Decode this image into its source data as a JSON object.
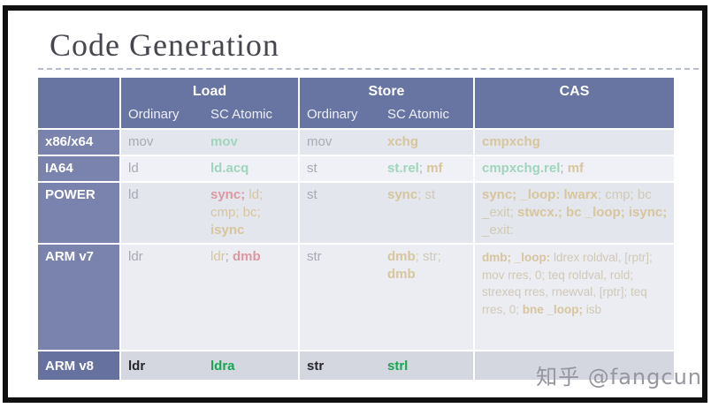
{
  "slide": {
    "title": "Code Generation",
    "watermark": "知乎 @fangcun"
  },
  "palette": {
    "gray": "#a7aab4",
    "tan": "#d7c69c",
    "dim": "#cfc9b6",
    "red": "#dc97a1",
    "green": "#9fd5bd",
    "black": "#26262b",
    "brightGreen": "#17a551"
  },
  "table": {
    "groups": [
      {
        "label": "Load",
        "sub": [
          "Ordinary",
          "SC Atomic"
        ]
      },
      {
        "label": "Store",
        "sub": [
          "Ordinary",
          "SC Atomic"
        ]
      },
      {
        "label": "CAS",
        "sub": []
      }
    ],
    "rows": [
      {
        "arch": "x86/x64",
        "load_ord": [
          {
            "t": "mov",
            "c": "gray"
          }
        ],
        "load_sc": [
          {
            "t": "mov",
            "c": "green",
            "b": 1
          }
        ],
        "store_ord": [
          {
            "t": "mov",
            "c": "gray"
          }
        ],
        "store_sc": [
          {
            "t": "xchg",
            "c": "tan",
            "b": 1
          }
        ],
        "cas": [
          {
            "t": "cmpxchg",
            "c": "tan",
            "b": 1
          }
        ]
      },
      {
        "arch": "IA64",
        "load_ord": [
          {
            "t": "ld",
            "c": "gray"
          }
        ],
        "load_sc": [
          {
            "t": "ld.acq",
            "c": "green",
            "b": 1
          }
        ],
        "store_ord": [
          {
            "t": "st",
            "c": "gray"
          }
        ],
        "store_sc": [
          {
            "t": "st.rel",
            "c": "green",
            "b": 1
          },
          {
            "t": "; ",
            "c": "gray"
          },
          {
            "t": "mf",
            "c": "tan",
            "b": 1
          }
        ],
        "cas": [
          {
            "t": "cmpxchg.rel",
            "c": "green",
            "b": 1
          },
          {
            "t": "; ",
            "c": "gray"
          },
          {
            "t": "mf",
            "c": "tan",
            "b": 1
          }
        ]
      },
      {
        "arch": "POWER",
        "load_ord": [
          {
            "t": "ld",
            "c": "gray"
          }
        ],
        "load_sc": [
          {
            "t": "sync; ",
            "c": "red",
            "b": 1
          },
          {
            "t": "ld; cmp; bc; ",
            "c": "tan"
          },
          {
            "t": "isync",
            "c": "tan",
            "b": 1
          }
        ],
        "store_ord": [
          {
            "t": "st",
            "c": "gray"
          }
        ],
        "store_sc": [
          {
            "t": "sync",
            "c": "tan",
            "b": 1
          },
          {
            "t": "; ",
            "c": "dim"
          },
          {
            "t": "st",
            "c": "dim"
          }
        ],
        "cas": [
          {
            "t": "sync; _loop: lwarx",
            "c": "tan",
            "b": 1
          },
          {
            "t": "; cmp; bc _exit; ",
            "c": "dim"
          },
          {
            "t": "stwcx.; bc _loop; isync;",
            "c": "tan",
            "b": 1
          },
          {
            "t": " _exit:",
            "c": "dim"
          }
        ]
      },
      {
        "arch": "ARM v7",
        "load_ord": [
          {
            "t": "ldr",
            "c": "gray"
          }
        ],
        "load_sc": [
          {
            "t": "ldr",
            "c": "tan"
          },
          {
            "t": "; ",
            "c": "gray"
          },
          {
            "t": "dmb",
            "c": "red",
            "b": 1
          }
        ],
        "store_ord": [
          {
            "t": "str",
            "c": "gray"
          }
        ],
        "store_sc": [
          {
            "t": "dmb",
            "c": "tan",
            "b": 1
          },
          {
            "t": "; str; ",
            "c": "dim"
          },
          {
            "t": "dmb",
            "c": "tan",
            "b": 1
          }
        ],
        "cas": [
          {
            "t": "dmb; _loop:",
            "c": "tan",
            "b": 1
          },
          {
            "t": " ldrex roldval, [rptr]; mov rres, 0; teq roldval, rold; strexeq rres, rnewval, [rptr]; teq rres, 0; ",
            "c": "dim"
          },
          {
            "t": "bne _loop;",
            "c": "tan",
            "b": 1
          },
          {
            "t": " isb",
            "c": "dim"
          }
        ]
      },
      {
        "arch": "ARM v8",
        "load_ord": [
          {
            "t": "ldr",
            "c": "black",
            "b": 1
          }
        ],
        "load_sc": [
          {
            "t": "ldra",
            "c": "brightGreen",
            "b": 1
          }
        ],
        "store_ord": [
          {
            "t": "str",
            "c": "black",
            "b": 1
          }
        ],
        "store_sc": [
          {
            "t": "strl",
            "c": "brightGreen",
            "b": 1
          }
        ],
        "cas": []
      }
    ]
  }
}
